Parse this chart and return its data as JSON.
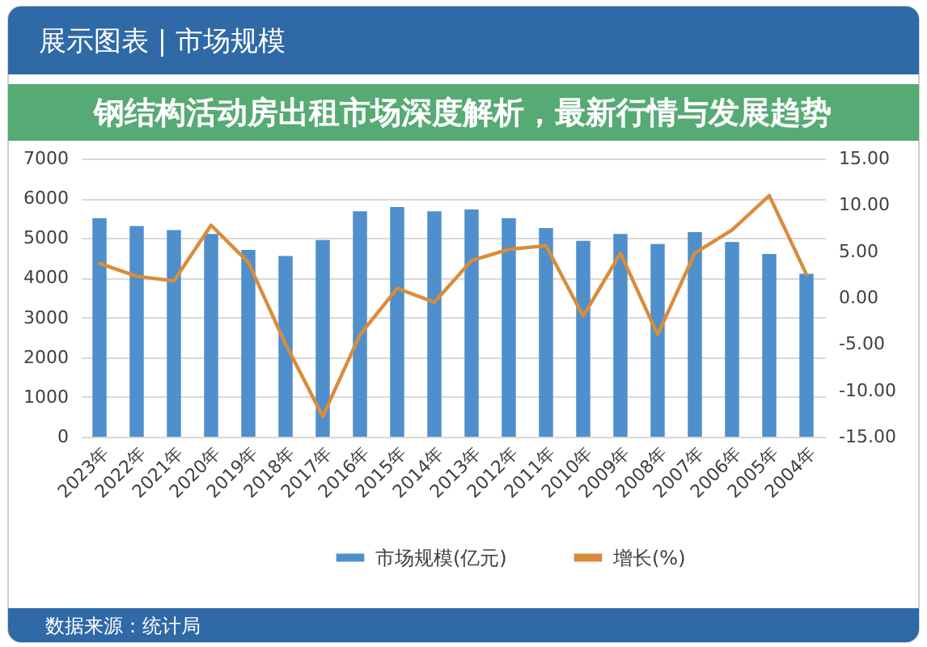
{
  "chart_data": {
    "type": "bar",
    "title": "钢结构活动房出租市场深度解析，最新行情与发展趋势",
    "subtitle": "展示图表 | 市场规模",
    "categories": [
      "2023年",
      "2022年",
      "2021年",
      "2020年",
      "2019年",
      "2018年",
      "2017年",
      "2016年",
      "2015年",
      "2014年",
      "2013年",
      "2012年",
      "2011年",
      "2010年",
      "2009年",
      "2008年",
      "2007年",
      "2006年",
      "2005年",
      "2004年"
    ],
    "series": [
      {
        "name": "市场规模(亿元)",
        "color": "#4f8fcc",
        "values": [
          5500,
          5300,
          5200,
          5100,
          4700,
          4550,
          4950,
          5670,
          5780,
          5670,
          5720,
          5500,
          5250,
          4930,
          5100,
          4850,
          5150,
          4900,
          4600,
          4100
        ]
      },
      {
        "name": "增长(%)",
        "type": "line",
        "axis": "y2",
        "color": "#d98c3c",
        "values": [
          3.7,
          2.3,
          1.8,
          7.8,
          3.8,
          -5.0,
          -12.8,
          -4.0,
          1.0,
          -0.5,
          4.0,
          5.2,
          5.6,
          -2.0,
          4.8,
          -4.0,
          4.8,
          7.3,
          11.0,
          2.5
        ]
      }
    ],
    "ylim": [
      0,
      7000
    ],
    "yticks": [
      0,
      1000,
      2000,
      3000,
      4000,
      5000,
      6000,
      7000
    ],
    "y2lim": [
      -15,
      15
    ],
    "y2ticks": [
      {
        "value": -15,
        "label": "-15.00"
      },
      {
        "value": -10,
        "label": "-10.00"
      },
      {
        "value": -5,
        "label": "-5.00"
      },
      {
        "value": 0,
        "label": "0.00"
      },
      {
        "value": 5,
        "label": "5.00"
      },
      {
        "value": 10,
        "label": "10.00"
      },
      {
        "value": 15,
        "label": "15.00"
      }
    ],
    "grid": "y",
    "legend": "bottom",
    "annotations": [
      "数据来源：统计局"
    ]
  }
}
